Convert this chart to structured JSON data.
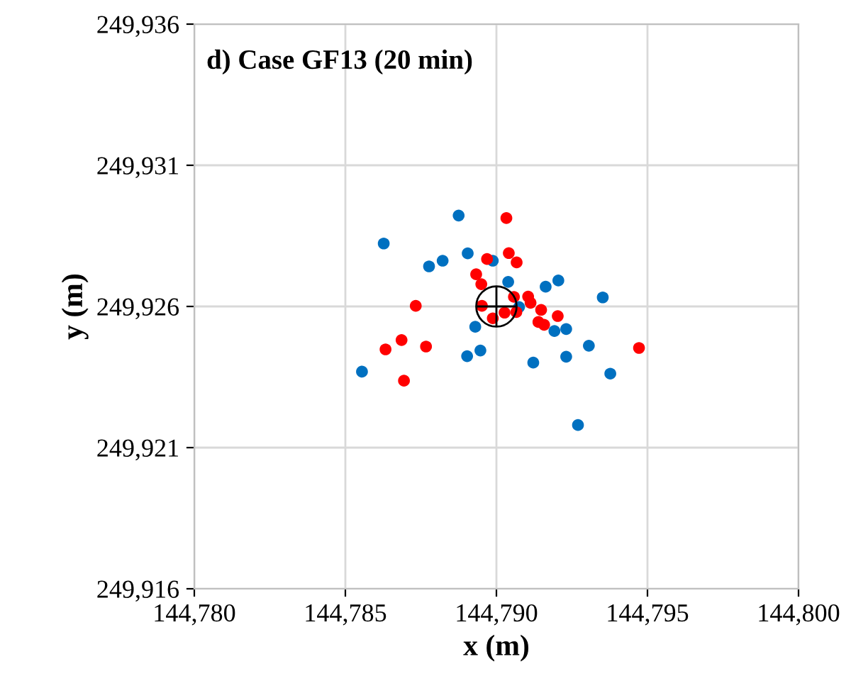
{
  "chart_data": {
    "type": "scatter",
    "title": "d) Case GF13 (20 min)",
    "xlabel": "x (m)",
    "ylabel": "y (m)",
    "xlim": [
      144780,
      144800
    ],
    "ylim": [
      249916,
      249936
    ],
    "xticks": [
      {
        "value": 144780,
        "label": "144,780"
      },
      {
        "value": 144785,
        "label": "144,785"
      },
      {
        "value": 144790,
        "label": "144,790"
      },
      {
        "value": 144795,
        "label": "144,795"
      },
      {
        "value": 144800,
        "label": "144,800"
      }
    ],
    "yticks": [
      {
        "value": 249916,
        "label": "249,916"
      },
      {
        "value": 249921,
        "label": "249,921"
      },
      {
        "value": 249926,
        "label": "249,926"
      },
      {
        "value": 249931,
        "label": "249,931"
      },
      {
        "value": 249936,
        "label": "249,936"
      }
    ],
    "grid": true,
    "marker": "circle",
    "series": [
      {
        "color": "#0070c0",
        "x": [
          144788.75,
          144786.27,
          144787.77,
          144788.22,
          144789.05,
          144789.88,
          144790.39,
          144791.63,
          144792.05,
          144793.52,
          144790.75,
          144789.3,
          144791.92,
          144792.31,
          144789.47,
          144789.03,
          144793.06,
          144792.31,
          144791.22,
          144785.55,
          144793.77,
          144792.7
        ],
        "values": [
          249929.22,
          249928.23,
          249927.42,
          249927.62,
          249927.88,
          249927.62,
          249926.87,
          249926.7,
          249926.92,
          249926.32,
          249925.98,
          249925.28,
          249925.13,
          249925.2,
          249924.44,
          249924.24,
          249924.61,
          249924.22,
          249924.01,
          249923.69,
          249923.62,
          249921.8
        ]
      },
      {
        "color": "#ff0000",
        "x": [
          144790.33,
          144790.41,
          144790.67,
          144789.69,
          144789.33,
          144789.5,
          144787.33,
          144789.52,
          144789.88,
          144790.27,
          144790.66,
          144790.58,
          144791.05,
          144791.13,
          144791.48,
          144792.03,
          144791.39,
          144791.58,
          144786.86,
          144786.33,
          144787.67,
          144786.94,
          144794.72
        ],
        "values": [
          249929.13,
          249927.89,
          249927.56,
          249927.68,
          249927.14,
          249926.79,
          249926.02,
          249926.02,
          249925.58,
          249925.78,
          249925.8,
          249926.34,
          249926.35,
          249926.13,
          249925.88,
          249925.66,
          249925.45,
          249925.35,
          249924.81,
          249924.48,
          249924.58,
          249923.37,
          249924.53
        ]
      },
      {
        "color": "#000000",
        "marker": "circle",
        "x": [
          144790
        ],
        "values": [
          249926
        ]
      }
    ]
  }
}
